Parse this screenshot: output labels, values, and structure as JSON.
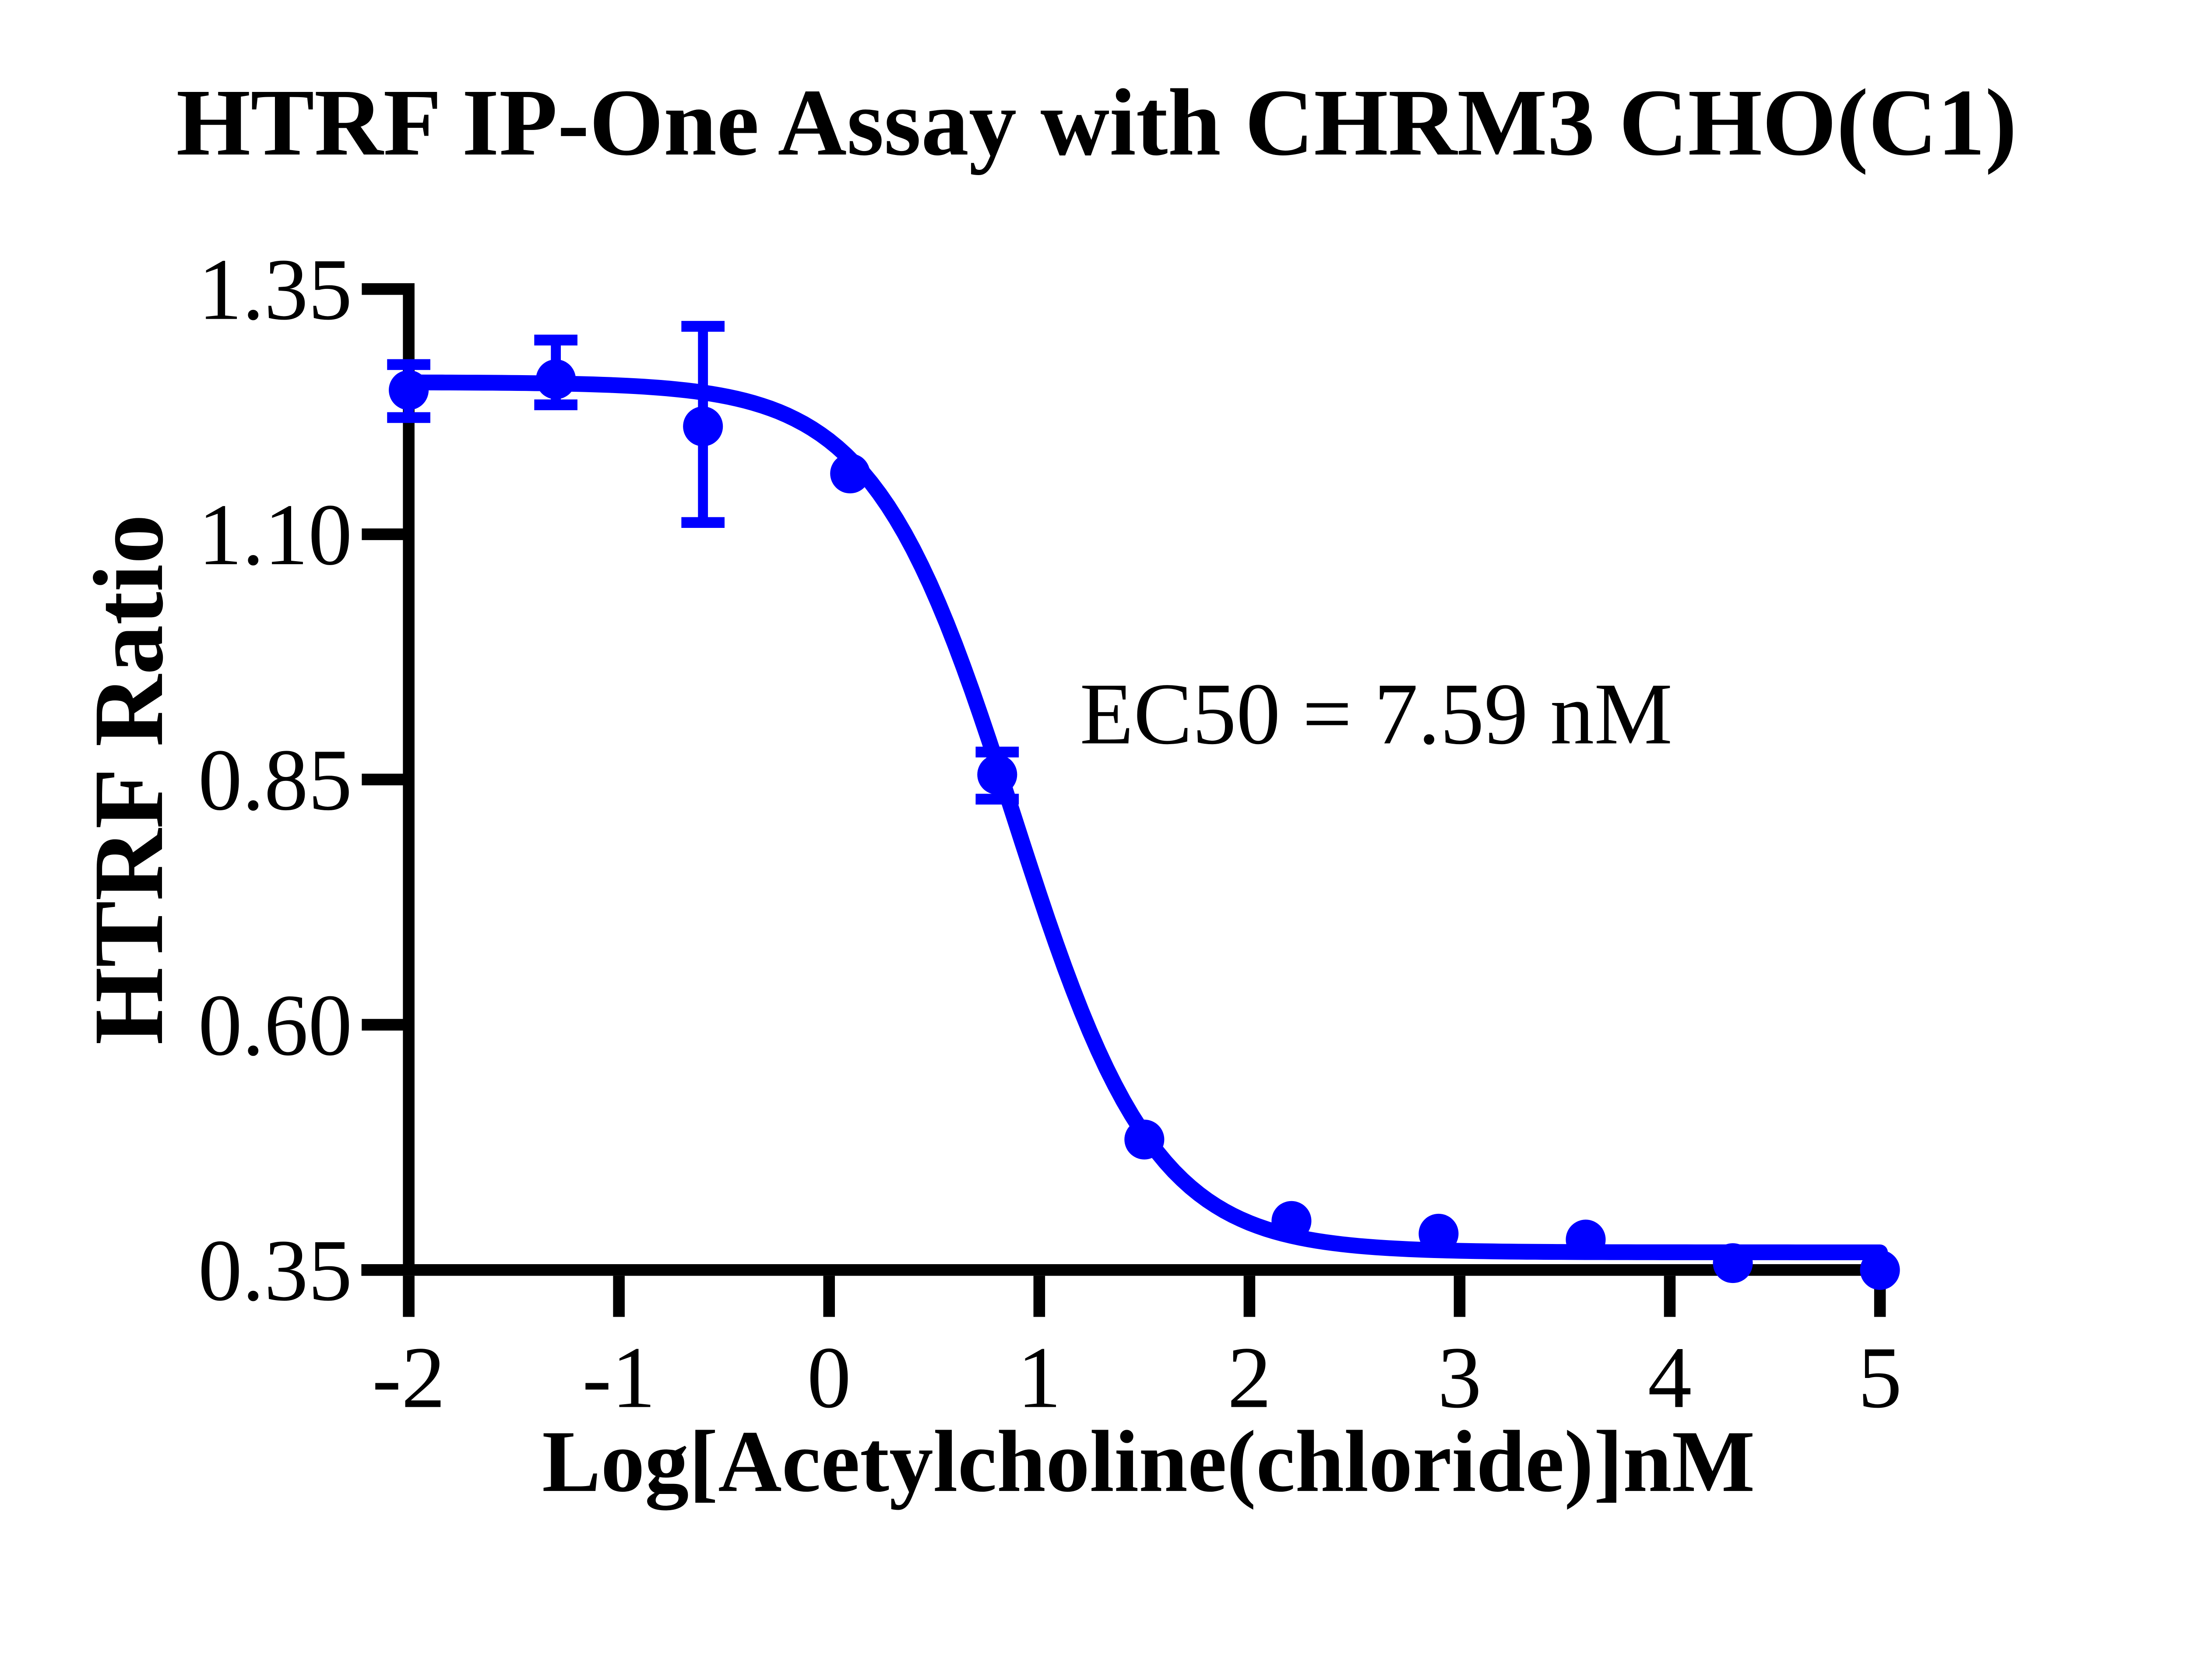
{
  "page": {
    "background": "#FFFFFF"
  },
  "chart_data": {
    "type": "scatter",
    "title": "HTRF IP-One Assay with CHRM3 CHO(C1)",
    "xlabel": "Log[Acetylcholine(chloride)]nM",
    "ylabel": "HTRF Ratio",
    "annotation": "EC50 = 7.59 nM",
    "legend": "none",
    "grid": "off",
    "colors": {
      "series": "#0000FF",
      "axis": "#000000",
      "background": "#FFFFFF"
    },
    "xlim": [
      -2,
      5
    ],
    "ylim": [
      0.35,
      1.35
    ],
    "x_tick_values": [
      -2,
      -1,
      0,
      1,
      2,
      3,
      4,
      5
    ],
    "x_tick_labels": [
      "-2",
      "-1",
      "0",
      "1",
      "2",
      "3",
      "4",
      "5"
    ],
    "y_tick_values": [
      1.35,
      1.1,
      0.85,
      0.6,
      0.35
    ],
    "y_tick_labels": [
      "1.35",
      "1.10",
      "0.85",
      "0.60",
      "0.35"
    ],
    "points": [
      {
        "x": -2.0,
        "y": 1.247,
        "err_plus": 0.026,
        "err_minus": 0.028
      },
      {
        "x": -1.3,
        "y": 1.258,
        "err_plus": 0.04,
        "err_minus": 0.026
      },
      {
        "x": -0.6,
        "y": 1.21,
        "err_plus": 0.102,
        "err_minus": 0.098
      },
      {
        "x": 0.1,
        "y": 1.162,
        "err_plus": 0,
        "err_minus": 0
      },
      {
        "x": 0.8,
        "y": 0.855,
        "err_plus": 0.023,
        "err_minus": 0.025
      },
      {
        "x": 1.5,
        "y": 0.483,
        "err_plus": 0,
        "err_minus": 0
      },
      {
        "x": 2.2,
        "y": 0.4,
        "err_plus": 0,
        "err_minus": 0
      },
      {
        "x": 2.9,
        "y": 0.387,
        "err_plus": 0,
        "err_minus": 0
      },
      {
        "x": 3.6,
        "y": 0.381,
        "err_plus": 0,
        "err_minus": 0
      },
      {
        "x": 4.3,
        "y": 0.357,
        "err_plus": 0,
        "err_minus": 0
      },
      {
        "x": 5.0,
        "y": 0.35,
        "err_plus": 0,
        "err_minus": 0
      }
    ],
    "fit_curve": {
      "model": "four-parameter logistic, decreasing",
      "top": 1.255,
      "bottom": 0.368,
      "logEC50": 0.8804,
      "hill_slope": 1.3,
      "x_start": -2.0,
      "x_end": 5.02
    },
    "ec50_value_label": "7.59 nM"
  }
}
